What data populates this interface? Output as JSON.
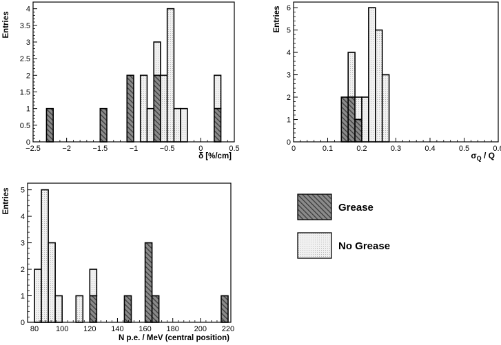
{
  "legend": {
    "placement": "bottom-right",
    "items": [
      {
        "label": "Grease",
        "style": "dark-hatched"
      },
      {
        "label": "No Grease",
        "style": "light-dotted"
      }
    ]
  },
  "colors": {
    "grease_fill": "#8a8a8a",
    "grease_hatch": "#3a3a3a",
    "nogrease_fill": "#f1f1f1",
    "nogrease_dots": "#b9b9b9",
    "outline": "#000000"
  },
  "chart_data": [
    {
      "id": "delta",
      "type": "bar",
      "histogram": "stacked",
      "xlabel": "δ [%/cm]",
      "ylabel": "Entries",
      "xlim": [
        -2.5,
        0.5
      ],
      "ylim": [
        0,
        4.2
      ],
      "xticks": [
        -2.5,
        -2,
        -1.5,
        -1,
        -0.5,
        0,
        0.5
      ],
      "xtick_labels": [
        "−2.5",
        "−2",
        "−1.5",
        "−1",
        "−0.5",
        "0",
        "0.5"
      ],
      "yticks": [
        0,
        0.5,
        1,
        1.5,
        2,
        2.5,
        3,
        3.5,
        4
      ],
      "ytick_labels": [
        "0",
        "0.5",
        "1",
        "1.5",
        "2",
        "2.5",
        "3",
        "3.5",
        "4"
      ],
      "bin_width": 0.1,
      "bins": [
        {
          "x0": -2.3,
          "grease": 1,
          "no_grease": 0
        },
        {
          "x0": -1.5,
          "grease": 1,
          "no_grease": 0
        },
        {
          "x0": -1.1,
          "grease": 2,
          "no_grease": 0
        },
        {
          "x0": -0.9,
          "grease": 0,
          "no_grease": 2
        },
        {
          "x0": -0.8,
          "grease": 0,
          "no_grease": 1
        },
        {
          "x0": -0.7,
          "grease": 2,
          "no_grease": 1
        },
        {
          "x0": -0.6,
          "grease": 0,
          "no_grease": 2
        },
        {
          "x0": -0.5,
          "grease": 0,
          "no_grease": 4
        },
        {
          "x0": -0.4,
          "grease": 0,
          "no_grease": 1
        },
        {
          "x0": -0.3,
          "grease": 0,
          "no_grease": 1
        },
        {
          "x0": 0.2,
          "grease": 1,
          "no_grease": 1
        }
      ]
    },
    {
      "id": "sigma",
      "type": "bar",
      "histogram": "stacked",
      "xlabel": "σQ / Q",
      "xlabel_main": "σ",
      "xlabel_sub": "Q",
      "xlabel_rest": " / Q",
      "ylabel": "Entries",
      "xlim": [
        0,
        0.6
      ],
      "ylim": [
        0,
        6.25
      ],
      "xticks": [
        0,
        0.1,
        0.2,
        0.3,
        0.4,
        0.5,
        0.6
      ],
      "xtick_labels": [
        "0",
        "0.1",
        "0.2",
        "0.3",
        "0.4",
        "0.5",
        "0.6"
      ],
      "yticks": [
        0,
        1,
        2,
        3,
        4,
        5,
        6
      ],
      "ytick_labels": [
        "0",
        "1",
        "2",
        "3",
        "4",
        "5",
        "6"
      ],
      "bin_width": 0.02,
      "bins": [
        {
          "x0": 0.14,
          "grease": 2,
          "no_grease": 0
        },
        {
          "x0": 0.16,
          "grease": 2,
          "no_grease": 2
        },
        {
          "x0": 0.18,
          "grease": 1,
          "no_grease": 1
        },
        {
          "x0": 0.2,
          "grease": 0,
          "no_grease": 2
        },
        {
          "x0": 0.22,
          "grease": 0,
          "no_grease": 6
        },
        {
          "x0": 0.24,
          "grease": 0,
          "no_grease": 5
        },
        {
          "x0": 0.26,
          "grease": 0,
          "no_grease": 3
        }
      ]
    },
    {
      "id": "npe",
      "type": "bar",
      "histogram": "stacked",
      "xlabel": "N p.e. / MeV (central position)",
      "ylabel": "Entries",
      "xlim": [
        75,
        222
      ],
      "ylim": [
        0,
        5.25
      ],
      "xticks": [
        80,
        100,
        120,
        140,
        160,
        180,
        200,
        220
      ],
      "xtick_labels": [
        "80",
        "100",
        "120",
        "140",
        "160",
        "180",
        "200",
        "220"
      ],
      "yticks": [
        0,
        1,
        2,
        3,
        4,
        5
      ],
      "ytick_labels": [
        "0",
        "1",
        "2",
        "3",
        "4",
        "5"
      ],
      "bin_width": 5,
      "bins": [
        {
          "x0": 80,
          "grease": 0,
          "no_grease": 2
        },
        {
          "x0": 85,
          "grease": 0,
          "no_grease": 5
        },
        {
          "x0": 90,
          "grease": 0,
          "no_grease": 3
        },
        {
          "x0": 95,
          "grease": 0,
          "no_grease": 1
        },
        {
          "x0": 110,
          "grease": 0,
          "no_grease": 1
        },
        {
          "x0": 120,
          "grease": 1,
          "no_grease": 1
        },
        {
          "x0": 145,
          "grease": 1,
          "no_grease": 0
        },
        {
          "x0": 160,
          "grease": 3,
          "no_grease": 0
        },
        {
          "x0": 165,
          "grease": 1,
          "no_grease": 0
        },
        {
          "x0": 215,
          "grease": 1,
          "no_grease": 0
        }
      ]
    }
  ]
}
